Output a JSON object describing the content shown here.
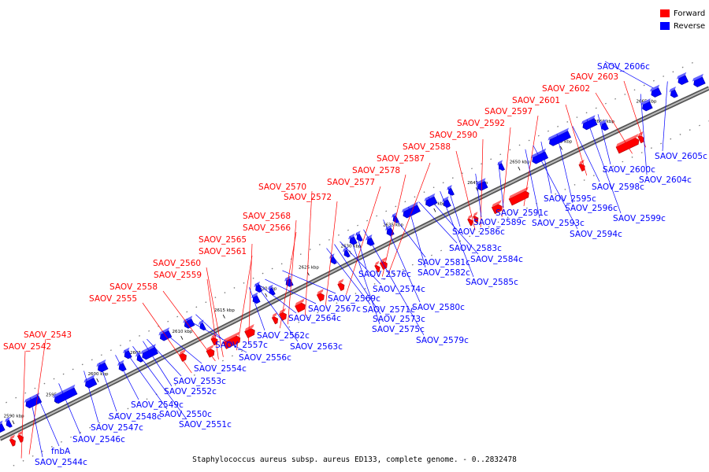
{
  "legend": [
    {
      "label": "Forward",
      "color": "#ff0000"
    },
    {
      "label": "Reverse",
      "color": "#0000ff"
    }
  ],
  "caption": "Staphylococcus aureus subsp. aureus ED133, complete genome. - 0..2832478",
  "colors": {
    "forward": "#ff0000",
    "reverse": "#0000ff",
    "backbone": "#777777"
  },
  "ticks": [
    "2590 kbp",
    "2595 kbp",
    "2600 kbp",
    "2605 kbp",
    "2610 kbp",
    "2615 kbp",
    "2620 kbp",
    "2625 kbp",
    "2630 kbp",
    "2635 kbp",
    "2640 kbp",
    "2645 kbp",
    "2650 kbp",
    "2655 kbp",
    "2660 kbp",
    "2665 kbp"
  ],
  "forward_genes": [
    "SAOV_2542",
    "SAOV_2543",
    "SAOV_2555",
    "SAOV_2558",
    "SAOV_2559",
    "SAOV_2560",
    "SAOV_2561",
    "SAOV_2565",
    "SAOV_2566",
    "SAOV_2568",
    "SAOV_2570",
    "SAOV_2572",
    "SAOV_2577",
    "SAOV_2578",
    "SAOV_2587",
    "SAOV_2588",
    "SAOV_2590",
    "SAOV_2592",
    "SAOV_2597",
    "SAOV_2601",
    "SAOV_2602",
    "SAOV_2603"
  ],
  "reverse_genes": [
    "SAOV_2606c",
    "SAOV_2605c",
    "SAOV_2604c",
    "SAOV_2600c",
    "SAOV_2599c",
    "SAOV_2598c",
    "SAOV_2596c",
    "SAOV_2595c",
    "SAOV_2594c",
    "SAOV_2593c",
    "SAOV_2591c",
    "SAOV_2589c",
    "SAOV_2586c",
    "SAOV_2585c",
    "SAOV_2584c",
    "SAOV_2583c",
    "SAOV_2582c",
    "SAOV_2581c",
    "SAOV_2580c",
    "SAOV_2579c",
    "SAOV_2576c",
    "SAOV_2575c",
    "SAOV_2574c",
    "SAOV_2573c",
    "SAOV_2571c",
    "SAOV_2569c",
    "SAOV_2567c",
    "SAOV_2564c",
    "SAOV_2563c",
    "SAOV_2562c",
    "SAOV_2557c",
    "SAOV_2556c",
    "SAOV_2554c",
    "SAOV_2553c",
    "SAOV_2552c",
    "SAOV_2551c",
    "SAOV_2550c",
    "SAOV_2549c",
    "SAOV_2548c",
    "SAOV_2547c",
    "SAOV_2546c",
    "fnbA",
    "SAOV_2544c"
  ]
}
